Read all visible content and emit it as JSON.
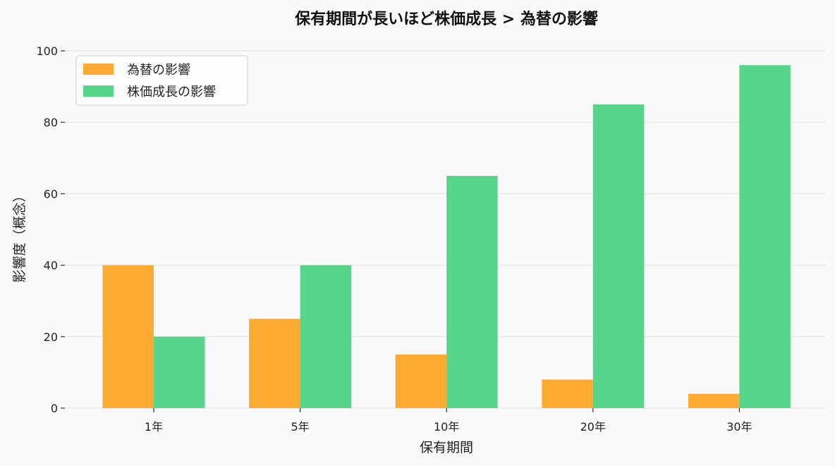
{
  "chart_data": {
    "type": "bar",
    "title": "保有期間が長いほど株価成長 > 為替の影響",
    "xlabel": "保有期間",
    "ylabel": "影響度（概念）",
    "categories": [
      "1年",
      "5年",
      "10年",
      "20年",
      "30年"
    ],
    "series": [
      {
        "name": "為替の影響",
        "color": "#FFAA33",
        "values": [
          40,
          25,
          15,
          8,
          4
        ]
      },
      {
        "name": "株価成長の影響",
        "color": "#57D58B",
        "values": [
          20,
          40,
          65,
          85,
          96
        ]
      }
    ],
    "ylim": [
      0,
      100
    ],
    "yticks": [
      0,
      20,
      40,
      60,
      80,
      100
    ],
    "grid": "horizontal",
    "legend_position": "top-left"
  }
}
